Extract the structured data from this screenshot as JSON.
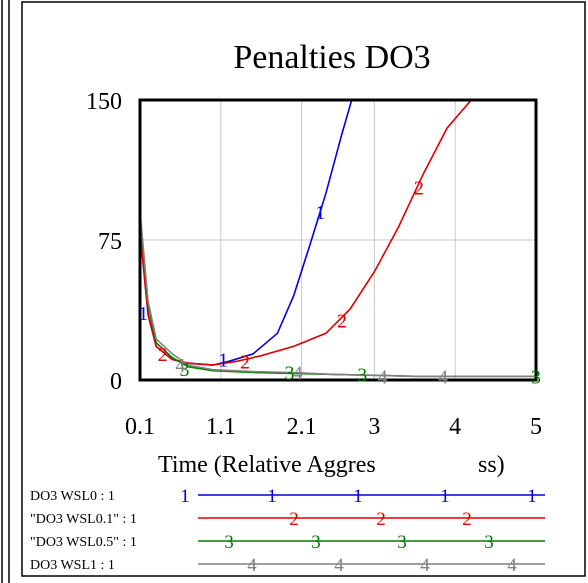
{
  "chart_data": {
    "type": "line",
    "title": "Penalties DO3",
    "xlabel": "Time (Relative Aggres",
    "xlabel_tail": "ss)",
    "x_ticks": [
      "0.1",
      "1.1",
      "2.1",
      "3",
      "4",
      "5"
    ],
    "x_tick_values": [
      0.1,
      1.1,
      2.1,
      3,
      4,
      5
    ],
    "y_ticks": [
      "0",
      "75",
      "150"
    ],
    "y_tick_values": [
      0,
      75,
      150
    ],
    "xlim": [
      0.1,
      5
    ],
    "ylim": [
      0,
      150
    ],
    "grid": true,
    "legend_position": "bottom",
    "series": [
      {
        "name": "DO3 WSL0 : 1",
        "marker": "1",
        "color": "#0000e0",
        "x": [
          0.1,
          0.2,
          0.3,
          0.5,
          0.7,
          1.0,
          1.2,
          1.5,
          1.8,
          2.0,
          2.2,
          2.4,
          2.6,
          2.72
        ],
        "y": [
          80,
          35,
          18,
          11,
          9,
          8,
          10,
          14,
          25,
          45,
          72,
          100,
          132,
          150
        ]
      },
      {
        "name": "\"DO3 WSL0.1\" : 1",
        "marker": "2",
        "color": "#e00000",
        "x": [
          0.1,
          0.2,
          0.3,
          0.5,
          0.7,
          1.0,
          1.3,
          1.6,
          2.0,
          2.4,
          2.7,
          3.0,
          3.3,
          3.6,
          3.9,
          4.2
        ],
        "y": [
          80,
          35,
          18,
          11,
          9,
          8,
          10,
          13,
          18,
          25,
          38,
          58,
          82,
          110,
          135,
          150
        ]
      },
      {
        "name": "\"DO3 WSL0.5\" : 1",
        "marker": "3",
        "color": "#008000",
        "x": [
          0.1,
          0.2,
          0.3,
          0.5,
          0.7,
          1.0,
          1.5,
          2.0,
          2.5,
          3.0,
          3.5,
          4.0,
          4.5,
          5.0
        ],
        "y": [
          90,
          40,
          20,
          12,
          7,
          5,
          4,
          3.5,
          3,
          2.5,
          2,
          2,
          2,
          2
        ]
      },
      {
        "name": "DO3 WSL1 : 1",
        "marker": "4",
        "color": "#808080",
        "x": [
          0.1,
          0.2,
          0.3,
          0.5,
          0.7,
          1.0,
          1.5,
          2.0,
          2.5,
          3.0,
          3.5,
          4.0,
          4.5,
          5.0
        ],
        "y": [
          90,
          42,
          22,
          14,
          8,
          5.5,
          4.5,
          4,
          3,
          2.5,
          2,
          2,
          2,
          2
        ]
      }
    ]
  }
}
